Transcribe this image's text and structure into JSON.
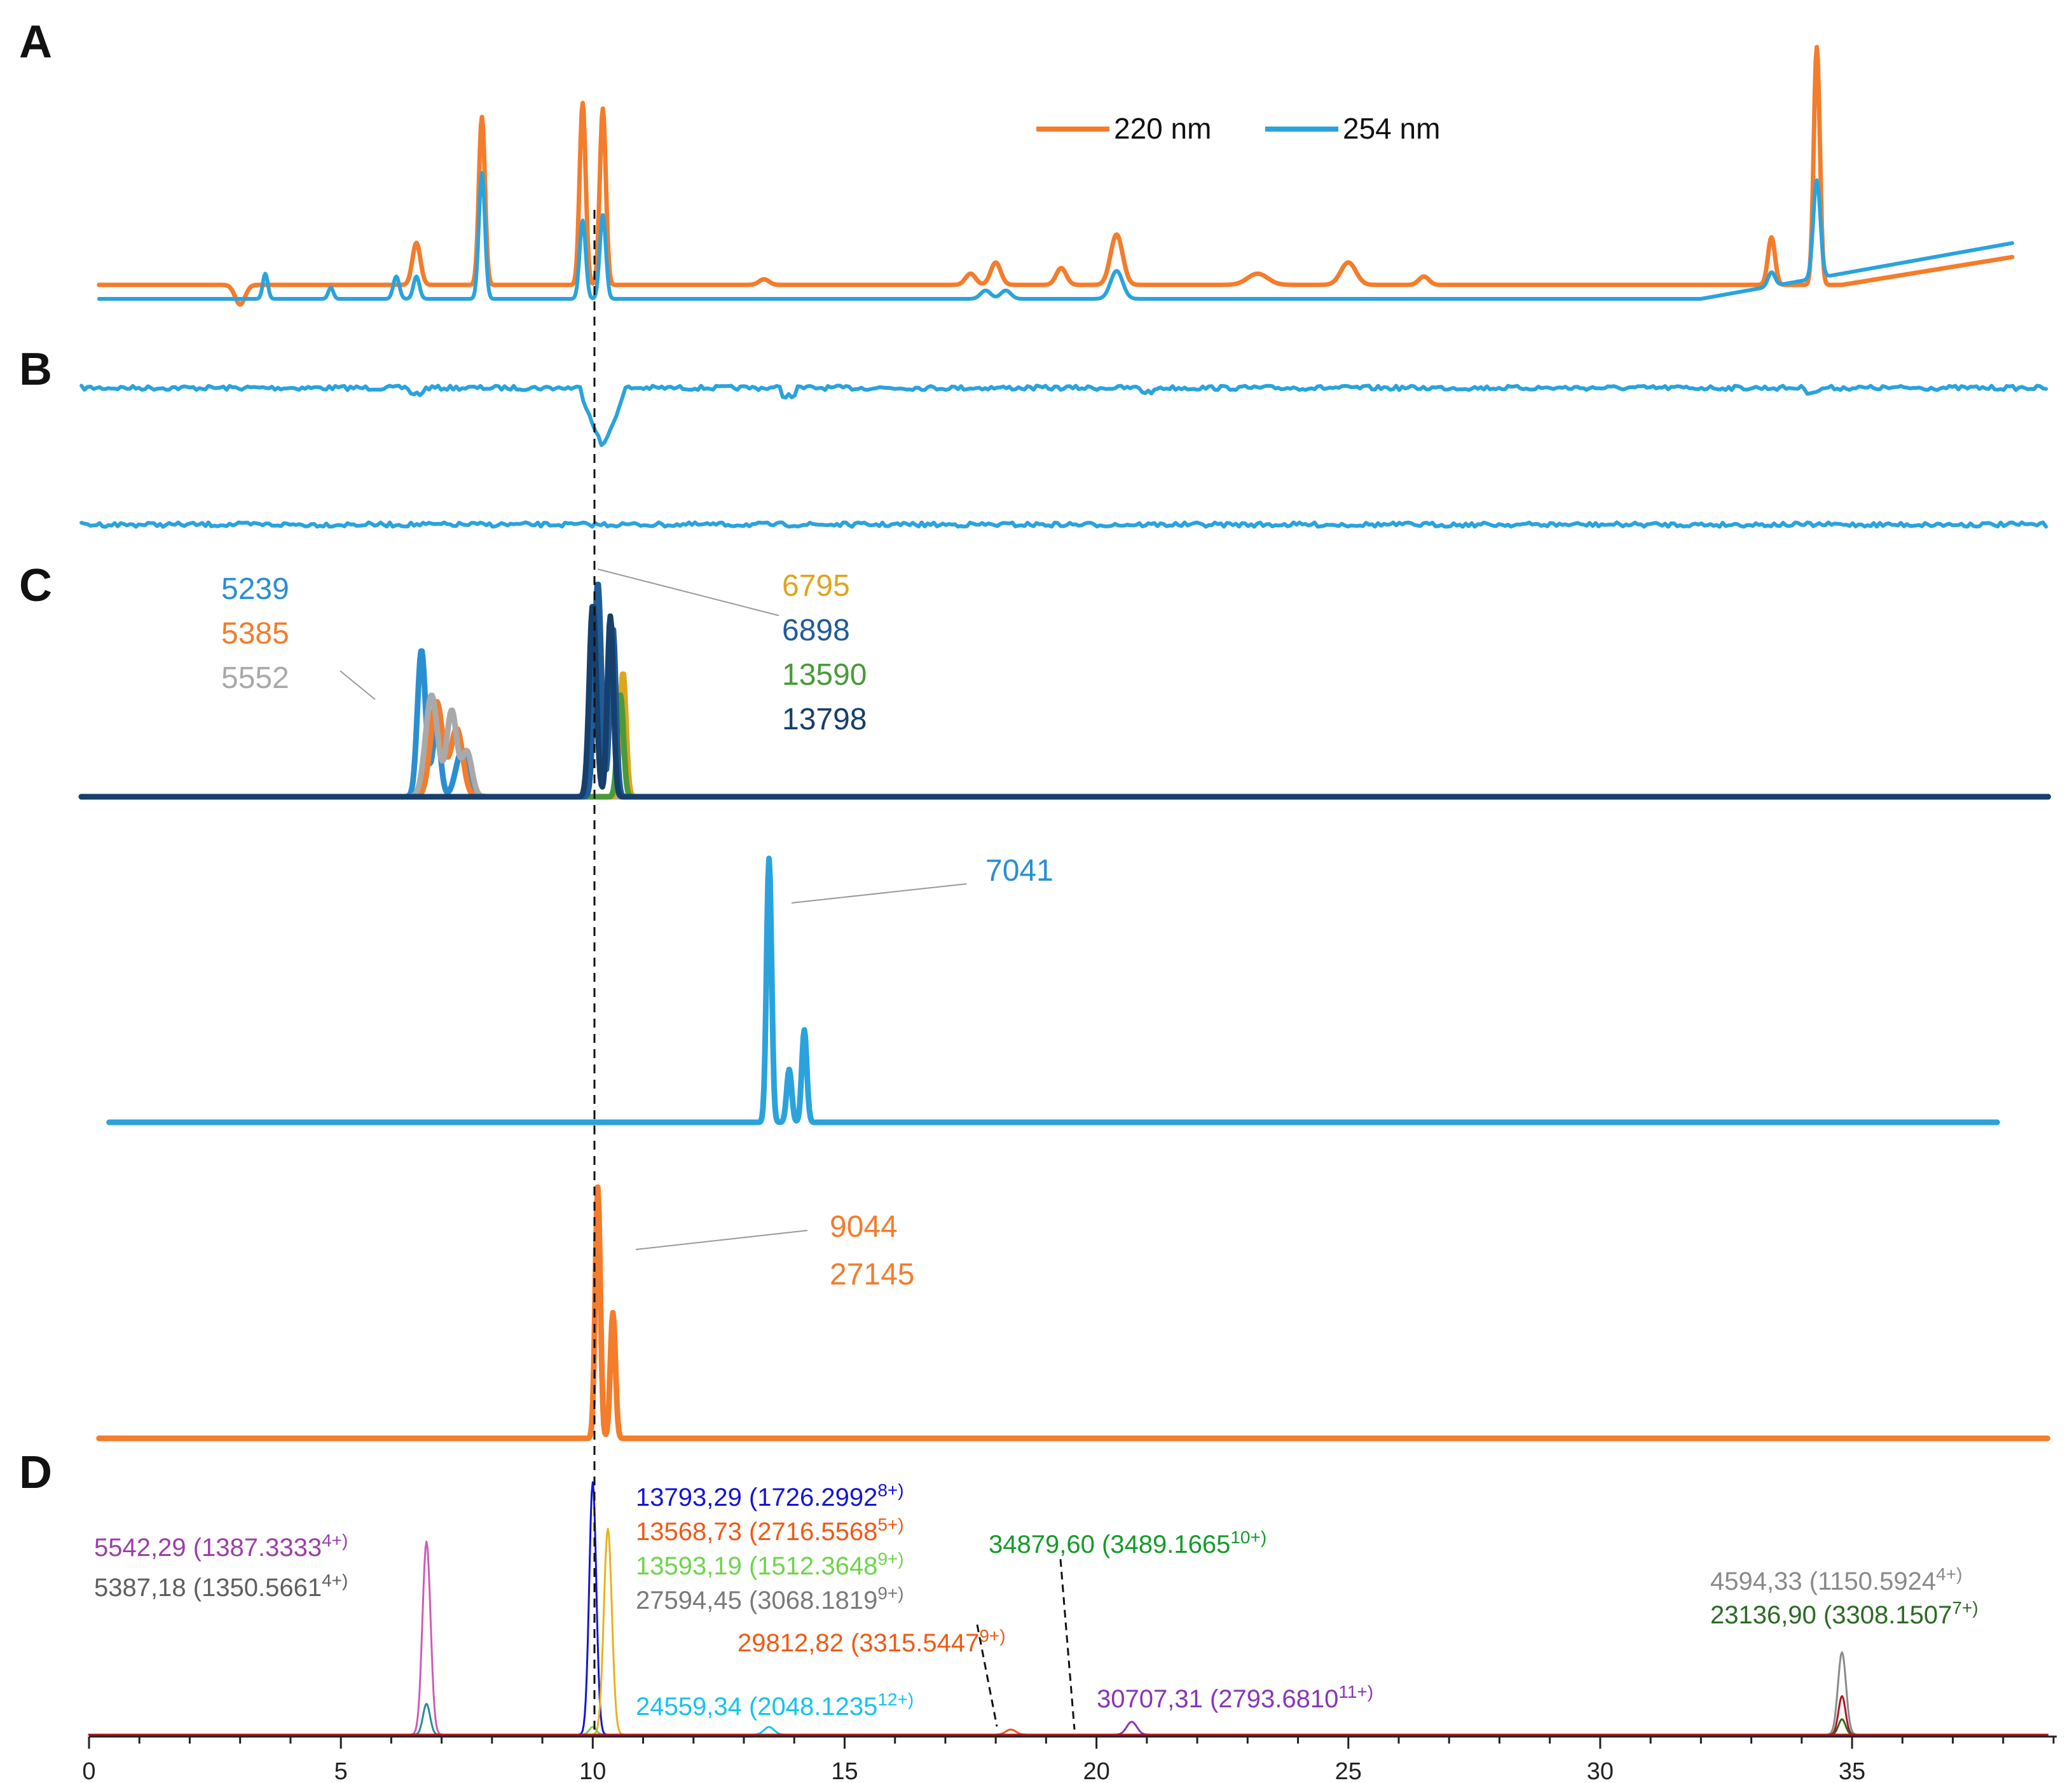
{
  "chart_data": [
    {
      "panel": "A",
      "type": "line",
      "legend": {
        "placement": "top-right",
        "entries": [
          "220 nm",
          "254 nm"
        ]
      },
      "colors": {
        "220 nm": "#f47c2b",
        "254 nm": "#2aa3dd"
      },
      "series": [
        {
          "name": "220 nm",
          "baseline": 0.05,
          "peaks": [
            [
              3.0,
              -0.07,
              0.1
            ],
            [
              6.5,
              0.15,
              0.08
            ],
            [
              7.8,
              0.6,
              0.06
            ],
            [
              9.8,
              0.65,
              0.06
            ],
            [
              10.2,
              0.63,
              0.06
            ],
            [
              13.4,
              0.02,
              0.1
            ],
            [
              17.5,
              0.04,
              0.1
            ],
            [
              18.0,
              0.08,
              0.1
            ],
            [
              19.3,
              0.06,
              0.1
            ],
            [
              20.4,
              0.18,
              0.12
            ],
            [
              23.2,
              0.04,
              0.2
            ],
            [
              25.0,
              0.08,
              0.15
            ],
            [
              26.5,
              0.03,
              0.1
            ],
            [
              33.4,
              0.17,
              0.07
            ],
            [
              34.3,
              0.85,
              0.06
            ]
          ],
          "ramp_start": 34.8,
          "ramp_end_value": 0.1
        },
        {
          "name": "254 nm",
          "baseline": 0.0,
          "peaks": [
            [
              3.5,
              0.09,
              0.05
            ],
            [
              4.8,
              0.04,
              0.05
            ],
            [
              6.1,
              0.08,
              0.06
            ],
            [
              6.5,
              0.08,
              0.06
            ],
            [
              7.8,
              0.45,
              0.06
            ],
            [
              9.8,
              0.28,
              0.06
            ],
            [
              10.2,
              0.3,
              0.06
            ],
            [
              17.8,
              0.03,
              0.1
            ],
            [
              18.2,
              0.03,
              0.1
            ],
            [
              20.4,
              0.1,
              0.12
            ],
            [
              33.4,
              0.05,
              0.07
            ],
            [
              34.3,
              0.35,
              0.07
            ]
          ],
          "ramp_start": 32.0,
          "ramp_end_value": 0.2
        }
      ]
    },
    {
      "panel": "B",
      "type": "line",
      "series": [
        {
          "name": "",
          "dips": [
            [
              10.2,
              0.8,
              0.25
            ]
          ],
          "small_dips": [
            [
              6.5,
              0.15
            ],
            [
              13.9,
              0.2
            ],
            [
              21.0,
              0.1
            ],
            [
              34.2,
              0.1
            ]
          ]
        },
        {
          "name": "",
          "dips": [],
          "small_dips": []
        }
      ]
    },
    {
      "panel": "C",
      "type": "line",
      "subpanels": [
        {
          "labels": [
            {
              "text": "5239",
              "color": "#2a8fd0"
            },
            {
              "text": "5385",
              "color": "#f47c2b"
            },
            {
              "text": "5552",
              "color": "#a9a9a9"
            },
            {
              "text": "6795",
              "color": "#e0a51c"
            },
            {
              "text": "6898",
              "color": "#1f5c99"
            },
            {
              "text": "13590",
              "color": "#4a9a3a"
            },
            {
              "text": "13798",
              "color": "#163f6b"
            }
          ],
          "traces": [
            {
              "color": "#2a8fd0",
              "peaks": [
                [
                  6.6,
                  0.65,
                  0.08
                ],
                [
                  6.9,
                  0.3,
                  0.08
                ],
                [
                  7.4,
                  0.2,
                  0.12
                ]
              ]
            },
            {
              "color": "#f47c2b",
              "peaks": [
                [
                  6.9,
                  0.42,
                  0.12
                ],
                [
                  7.3,
                  0.3,
                  0.12
                ]
              ]
            },
            {
              "color": "#a9a9a9",
              "peaks": [
                [
                  6.8,
                  0.45,
                  0.12
                ],
                [
                  7.2,
                  0.38,
                  0.1
                ],
                [
                  7.5,
                  0.2,
                  0.1
                ]
              ]
            },
            {
              "color": "#e0a51c",
              "peaks": [
                [
                  10.6,
                  0.55,
                  0.06
                ]
              ]
            },
            {
              "color": "#4a9a3a",
              "peaks": [
                [
                  10.55,
                  0.45,
                  0.06
                ]
              ]
            },
            {
              "color": "#1f5c99",
              "peaks": [
                [
                  10.1,
                  0.95,
                  0.07
                ],
                [
                  10.4,
                  0.75,
                  0.06
                ]
              ]
            },
            {
              "color": "#163f6b",
              "peaks": [
                [
                  10.0,
                  0.85,
                  0.07
                ],
                [
                  10.35,
                  0.8,
                  0.06
                ]
              ]
            }
          ]
        },
        {
          "labels": [
            {
              "text": "7041",
              "color": "#2a8fd0"
            }
          ],
          "traces": [
            {
              "color": "#2aa3dd",
              "peaks": [
                [
                  13.5,
                  1.0,
                  0.05
                ],
                [
                  13.9,
                  0.2,
                  0.05
                ],
                [
                  14.2,
                  0.35,
                  0.05
                ]
              ]
            }
          ]
        },
        {
          "labels": [
            {
              "text": "9044",
              "color": "#f47c2b"
            },
            {
              "text": "27145",
              "color": "#f47c2b"
            }
          ],
          "traces": [
            {
              "color": "#f47c2b",
              "peaks": [
                [
                  10.1,
                  1.0,
                  0.05
                ],
                [
                  10.4,
                  0.5,
                  0.05
                ]
              ]
            }
          ]
        }
      ]
    },
    {
      "panel": "D",
      "type": "line",
      "x_ticks": [
        "0",
        "5",
        "10",
        "15",
        "20",
        "25",
        "30",
        "35"
      ],
      "xlim": [
        0,
        39
      ],
      "annotations": [
        {
          "text": "5542,29 (1387.3333",
          "sup": "4+)",
          "color": "#9b3fa8"
        },
        {
          "text": "5387,18 (1350.5661",
          "sup": "4+)",
          "color": "#5f5f5f"
        },
        {
          "text": "13793,29 (1726.2992",
          "sup": "8+)",
          "color": "#1414d6"
        },
        {
          "text": "13568,73 (2716.5568",
          "sup": "5+)",
          "color": "#f05a14"
        },
        {
          "text": "13593,19 (1512.3648",
          "sup": "9+)",
          "color": "#6fd44a"
        },
        {
          "text": "27594,45 (3068.1819",
          "sup": "9+)",
          "color": "#7a7a7a"
        },
        {
          "text": "29812,82 (3315.5447",
          "sup": "9+)",
          "color": "#f05a14"
        },
        {
          "text": "24559,34 (2048.1235",
          "sup": "12+)",
          "color": "#14c3ee"
        },
        {
          "text": "34879,60 (3489.1665",
          "sup": "10+)",
          "color": "#159a2a"
        },
        {
          "text": "30707,31 (2793.6810",
          "sup": "11+)",
          "color": "#8a35b5"
        },
        {
          "text": "4594,33 (1150.5924",
          "sup": "4+)",
          "color": "#8a8a8a"
        },
        {
          "text": "23136,90 (3308.1507",
          "sup": "7+)",
          "color": "#2b6b24"
        }
      ],
      "traces": [
        {
          "color": "#d05bb5",
          "peaks": [
            [
              6.7,
              0.75,
              0.08
            ]
          ]
        },
        {
          "color": "#2a8e8e",
          "peaks": [
            [
              6.7,
              0.12,
              0.07
            ]
          ]
        },
        {
          "color": "#1414d6",
          "peaks": [
            [
              10.0,
              0.98,
              0.07
            ]
          ]
        },
        {
          "color": "#e8b21c",
          "peaks": [
            [
              10.3,
              0.8,
              0.08
            ]
          ]
        },
        {
          "color": "#6fd44a",
          "peaks": [
            [
              10.0,
              0.03,
              0.07
            ]
          ]
        },
        {
          "color": "#14c3ee",
          "peaks": [
            [
              13.5,
              0.03,
              0.1
            ]
          ]
        },
        {
          "color": "#f05a14",
          "peaks": [
            [
              18.3,
              0.02,
              0.1
            ]
          ]
        },
        {
          "color": "#8a35b5",
          "peaks": [
            [
              20.7,
              0.05,
              0.1
            ]
          ]
        },
        {
          "color": "#8a8a8a",
          "peaks": [
            [
              34.8,
              0.32,
              0.08
            ]
          ]
        },
        {
          "color": "#b0141e",
          "peaks": [
            [
              34.8,
              0.15,
              0.07
            ]
          ]
        },
        {
          "color": "#2b6b24",
          "peaks": [
            [
              34.8,
              0.06,
              0.07
            ]
          ]
        },
        {
          "color": "#b0141e",
          "peaks": []
        }
      ]
    }
  ],
  "panel_letters": [
    "A",
    "B",
    "C",
    "D"
  ]
}
